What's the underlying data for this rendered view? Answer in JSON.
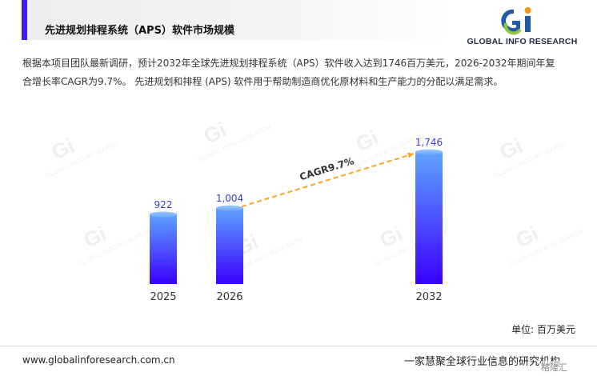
{
  "header": {
    "title": "先进规划排程系统（APS）软件市场规模",
    "accent_color": "#3b1ff2"
  },
  "logo": {
    "text": "GLOBAL INFO RESEARCH",
    "icon": "gi-logo-icon",
    "colors": [
      "#1f5aa6",
      "#8cc63f",
      "#f7941d"
    ]
  },
  "description": {
    "line1": "根据本项目团队最新调研，预计2032年全球先进规划排程系统（APS）软件收入达到1746百万美元，2026-2032年期间年复",
    "line2": "合增长率CAGR为9.7%。 先进规划和排程 (APS) 软件用于帮助制造商优化原材料和生产能力的分配以满足需求。"
  },
  "chart_data": {
    "type": "bar",
    "categories": [
      "2025",
      "2026",
      "2032"
    ],
    "values": [
      922,
      1004,
      1746
    ],
    "value_labels": [
      "922",
      "1,004",
      "1,746"
    ],
    "ylim": [
      0,
      1800
    ],
    "grid": false,
    "unit": "单位: 百万美元",
    "annotation": {
      "text": "CAGR9.7%",
      "from": "2026",
      "to": "2032",
      "style": "dashed-arrow",
      "color": "#f5a623"
    },
    "bar_gradient": [
      "#5ea3ff",
      "#3a00ff"
    ]
  },
  "footer": {
    "website": "www.globalinforesearch.com.cn",
    "slogan": "一家慧聚全球行业信息的研究机构"
  },
  "watermark": {
    "text": "GLOBAL INFO RESEARCH",
    "corner_text": "格隆汇"
  }
}
